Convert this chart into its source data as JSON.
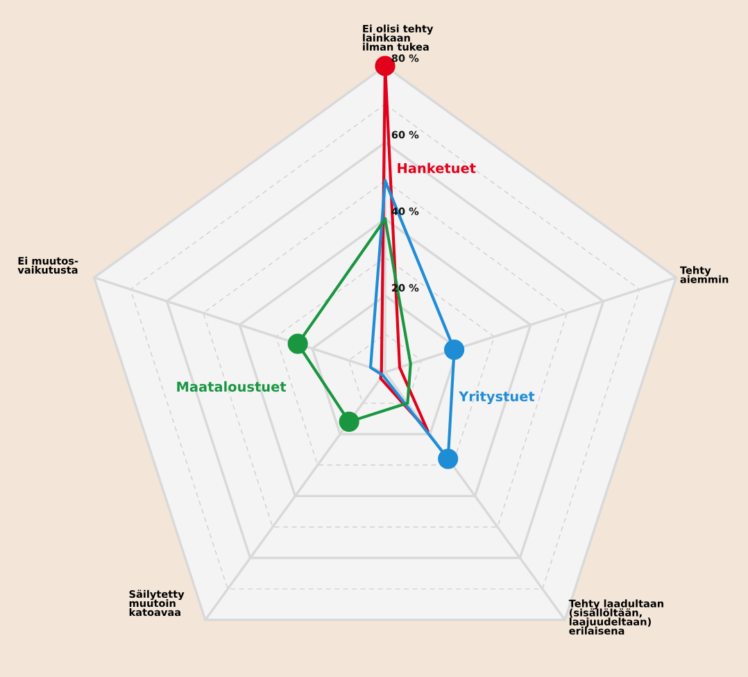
{
  "chart_data": {
    "type": "radar",
    "categories": [
      "Ei olisi tehty\nlainkaan\nilman tukea",
      "Tehty\naiemmin",
      "Tehty laadultaan\n(sisällöltään,\nlaajuudeltaan)\nerilaisena",
      "Säilytetty\nmuutoin\nkatoavaa",
      "Ei muutos-\nvaikutusta"
    ],
    "series": [
      {
        "name": "Hanketuet",
        "color": "#e3001b",
        "values": [
          80,
          4,
          19,
          2,
          1
        ]
      },
      {
        "name": "Yritystuet",
        "color": "#1f8dd6",
        "values": [
          50,
          19,
          28,
          1,
          4
        ]
      },
      {
        "name": "Maataloustuet",
        "color": "#1a9641",
        "values": [
          40,
          7,
          10,
          16,
          24
        ]
      }
    ],
    "ylim": [
      0,
      80
    ],
    "yticks": [
      {
        "value": 20,
        "label": "20 %"
      },
      {
        "value": 40,
        "label": "40 %"
      },
      {
        "value": 60,
        "label": "60 %"
      },
      {
        "value": 80,
        "label": "80 %"
      }
    ],
    "marker": "circle",
    "grid": true
  }
}
